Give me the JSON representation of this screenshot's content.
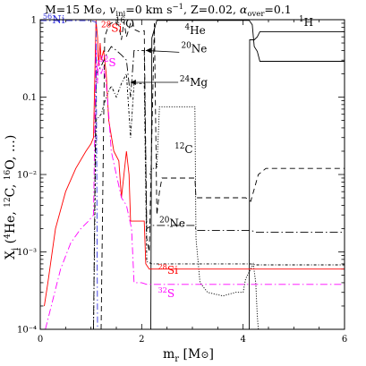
{
  "chart_data": {
    "type": "line",
    "title": "M=15 M⊙, vᵢₙᵢ=0 km s⁻¹, Z=0.02, αover=0.1",
    "title_parts": {
      "mass": "M=15 M",
      "sun": "⊙",
      "comma1": ", ",
      "v": "v",
      "v_sub": "ini",
      "v_eq": "=0 km s",
      "v_exp": "−1",
      "comma2": ", Z=0.02, ",
      "alpha": "α",
      "alpha_sub": "over",
      "alpha_eq": "=0.1"
    },
    "xlabel_parts": {
      "m": "m",
      "sub": "r",
      "unit": " [M",
      "sun": "⊙",
      "close": "]"
    },
    "ylabel_parts": {
      "X": "X",
      "sub": "i",
      "open": " (",
      "n1": "4",
      "e1": "He, ",
      "n2": "12",
      "e2": "C, ",
      "n3": "16",
      "e3": "O, …)"
    },
    "x_axis": {
      "scale": "linear",
      "range": [
        0,
        6
      ],
      "ticks": [
        0,
        2,
        4,
        6
      ],
      "tick_labels": [
        "0",
        "2",
        "4",
        "6"
      ]
    },
    "y_axis": {
      "scale": "log",
      "range": [
        0.0001,
        1
      ],
      "ticks": [
        0.0001,
        0.001,
        0.01,
        0.1,
        1
      ],
      "tick_labels": [
        "10⁻⁴",
        "10⁻³",
        "10⁻²",
        "0.1",
        "1"
      ]
    },
    "series": [
      {
        "label": "1H",
        "color": "#000000",
        "dash": "",
        "points": [
          [
            4.12,
            0.0001
          ],
          [
            4.13,
            0.55
          ],
          [
            4.22,
            0.55
          ],
          [
            4.28,
            0.6
          ],
          [
            4.33,
            0.7
          ],
          [
            6,
            0.7
          ]
        ]
      },
      {
        "label": "4He",
        "color": "#000000",
        "dash": "",
        "points": [
          [
            2.18,
            0.0001
          ],
          [
            2.2,
            0.58
          ],
          [
            2.3,
            0.98
          ],
          [
            4.12,
            0.98
          ],
          [
            4.18,
            0.86
          ],
          [
            4.22,
            0.45
          ],
          [
            4.28,
            0.39
          ],
          [
            4.33,
            0.29
          ],
          [
            6,
            0.29
          ]
        ]
      },
      {
        "label": "12C",
        "color": "#000000",
        "dash": "1.2,1.6",
        "points": [
          [
            2.16,
            0.01
          ],
          [
            2.2,
            0.012
          ],
          [
            2.3,
            0.012
          ],
          [
            2.35,
            0.075
          ],
          [
            3.05,
            0.075
          ],
          [
            3.07,
            0.0015
          ],
          [
            3.15,
            0.0004
          ],
          [
            3.3,
            0.0003
          ],
          [
            3.6,
            0.00027
          ],
          [
            3.85,
            0.0003
          ],
          [
            4.0,
            0.0003
          ],
          [
            4.05,
            0.00045
          ],
          [
            4.15,
            0.0006
          ],
          [
            4.2,
            0.0007
          ],
          [
            4.25,
            0.0004
          ],
          [
            4.28,
            0.00015
          ],
          [
            4.3,
            0.0001
          ]
        ]
      },
      {
        "label": "16O",
        "color": "#000000",
        "dash": "6,4",
        "points": [
          [
            1.2,
            0.0001
          ],
          [
            1.27,
            0.6
          ],
          [
            1.35,
            0.85
          ],
          [
            1.45,
            0.95
          ],
          [
            1.55,
            0.85
          ],
          [
            1.6,
            0.55
          ],
          [
            1.65,
            0.95
          ],
          [
            1.7,
            0.6
          ],
          [
            1.78,
            0.9
          ],
          [
            1.82,
            0.97
          ],
          [
            1.85,
            0.75
          ],
          [
            1.95,
            0.7
          ],
          [
            2.05,
            0.72
          ],
          [
            2.1,
            0.0015
          ],
          [
            2.15,
            0.001
          ],
          [
            2.25,
            0.9
          ],
          [
            2.3,
            0.003
          ],
          [
            2.35,
            0.006
          ],
          [
            2.4,
            0.009
          ],
          [
            2.6,
            0.009
          ],
          [
            3.05,
            0.009
          ],
          [
            3.07,
            0.005
          ],
          [
            4.05,
            0.005
          ],
          [
            4.15,
            0.0045
          ],
          [
            4.3,
            0.01
          ],
          [
            4.45,
            0.012
          ],
          [
            6,
            0.012
          ]
        ]
      },
      {
        "label": "20Ne",
        "color": "#000000",
        "dash": "9,3,1.5,3",
        "points": [
          [
            1.05,
            0.0001
          ],
          [
            1.1,
            0.2
          ],
          [
            1.2,
            0.25
          ],
          [
            1.3,
            0.35
          ],
          [
            1.4,
            0.45
          ],
          [
            1.5,
            0.4
          ],
          [
            1.6,
            0.35
          ],
          [
            1.7,
            0.3
          ],
          [
            1.78,
            0.1
          ],
          [
            1.85,
            0.4
          ],
          [
            1.95,
            0.4
          ],
          [
            2.05,
            0.4
          ],
          [
            2.1,
            0.002
          ],
          [
            2.2,
            0.0022
          ],
          [
            2.3,
            0.0022
          ],
          [
            2.6,
            0.0022
          ],
          [
            3.05,
            0.0022
          ],
          [
            3.07,
            0.0019
          ],
          [
            4.15,
            0.0019
          ],
          [
            4.25,
            0.0018
          ],
          [
            6,
            0.0018
          ]
        ]
      },
      {
        "label": "24Mg",
        "color": "#000000",
        "dash": "3,2,1,2",
        "points": [
          [
            1.05,
            0.0001
          ],
          [
            1.1,
            0.05
          ],
          [
            1.2,
            0.06
          ],
          [
            1.3,
            0.1
          ],
          [
            1.4,
            0.14
          ],
          [
            1.5,
            0.1
          ],
          [
            1.6,
            0.15
          ],
          [
            1.7,
            0.2
          ],
          [
            1.78,
            0.03
          ],
          [
            1.85,
            0.15
          ],
          [
            1.95,
            0.15
          ],
          [
            2.05,
            0.15
          ],
          [
            2.1,
            0.00075
          ],
          [
            2.2,
            0.0007
          ],
          [
            4.15,
            0.0007
          ],
          [
            4.25,
            0.00068
          ],
          [
            6,
            0.00068
          ]
        ]
      },
      {
        "label": "28Si",
        "color": "#ff0000",
        "dash": "",
        "points": [
          [
            0.08,
            0.0002
          ],
          [
            0.15,
            0.0004
          ],
          [
            0.3,
            0.002
          ],
          [
            0.5,
            0.006
          ],
          [
            0.7,
            0.012
          ],
          [
            0.9,
            0.02
          ],
          [
            1.0,
            0.025
          ],
          [
            1.05,
            0.03
          ],
          [
            1.1,
            0.98
          ],
          [
            1.13,
            0.6
          ],
          [
            1.15,
            0.25
          ],
          [
            1.18,
            0.5
          ],
          [
            1.2,
            0.3
          ],
          [
            1.25,
            0.4
          ],
          [
            1.3,
            0.2
          ],
          [
            1.35,
            0.05
          ],
          [
            1.45,
            0.02
          ],
          [
            1.55,
            0.015
          ],
          [
            1.6,
            0.005
          ],
          [
            1.65,
            0.01
          ],
          [
            1.7,
            0.02
          ],
          [
            1.75,
            0.01
          ],
          [
            1.78,
            0.0025
          ],
          [
            2.05,
            0.0025
          ],
          [
            2.08,
            0.0007
          ],
          [
            2.15,
            0.0006
          ],
          [
            6,
            0.0006
          ]
        ]
      },
      {
        "label": "32S",
        "color": "#ff00ff",
        "dash": "8,3,1.5,3",
        "points": [
          [
            0.1,
            0.0001
          ],
          [
            0.2,
            0.00018
          ],
          [
            0.4,
            0.0006
          ],
          [
            0.6,
            0.0013
          ],
          [
            0.8,
            0.002
          ],
          [
            0.95,
            0.0025
          ],
          [
            1.05,
            0.003
          ],
          [
            1.1,
            0.5
          ],
          [
            1.13,
            0.15
          ],
          [
            1.15,
            0.3
          ],
          [
            1.2,
            0.2
          ],
          [
            1.25,
            0.25
          ],
          [
            1.3,
            0.15
          ],
          [
            1.35,
            0.06
          ],
          [
            1.4,
            0.02
          ],
          [
            1.5,
            0.01
          ],
          [
            1.6,
            0.005
          ],
          [
            1.7,
            0.004
          ],
          [
            1.8,
            0.002
          ],
          [
            1.85,
            0.0004
          ],
          [
            2.0,
            0.0004
          ],
          [
            2.1,
            0.00038
          ],
          [
            6,
            0.00038
          ]
        ]
      },
      {
        "label": "56Ni",
        "color": "#3333dd",
        "dash": "7,3,1.5,3",
        "points": [
          [
            0,
            0.97
          ],
          [
            1.0,
            0.97
          ],
          [
            1.05,
            0.95
          ],
          [
            1.1,
            0.93
          ],
          [
            1.13,
            0.0001
          ]
        ]
      }
    ],
    "annotations": [
      {
        "num": "56",
        "el": "Ni",
        "color": "#3333dd",
        "x": 0.05,
        "y": 0.9,
        "size": 12
      },
      {
        "num": "28",
        "el": "Si",
        "color": "#ff0000",
        "x": 1.2,
        "y": 0.7,
        "size": 13
      },
      {
        "num": "16",
        "el": "O",
        "color": "#000000",
        "x": 1.48,
        "y": 0.8,
        "size": 13
      },
      {
        "num": "32",
        "el": "S",
        "color": "#ff00ff",
        "x": 1.15,
        "y": 0.25,
        "size": 13
      },
      {
        "num": "4",
        "el": "He",
        "color": "#000000",
        "x": 2.85,
        "y": 0.65,
        "size": 13
      },
      {
        "num": "1",
        "el": "H",
        "color": "#000000",
        "x": 5.1,
        "y": 0.83,
        "size": 13
      },
      {
        "num": "20",
        "el": "Ne",
        "color": "#000000",
        "x": 2.78,
        "y": 0.38,
        "size": 13
      },
      {
        "num": "24",
        "el": "Mg",
        "color": "#000000",
        "x": 2.75,
        "y": 0.14,
        "size": 13
      },
      {
        "num": "12",
        "el": "C",
        "color": "#000000",
        "x": 2.65,
        "y": 0.019,
        "size": 13
      },
      {
        "num": "20",
        "el": "Ne",
        "color": "#000000",
        "x": 2.35,
        "y": 0.0021,
        "size": 13
      },
      {
        "num": "28",
        "el": "Si",
        "color": "#ff0000",
        "x": 2.32,
        "y": 0.00052,
        "size": 12
      },
      {
        "num": "32",
        "el": "S",
        "color": "#ff00ff",
        "x": 2.32,
        "y": 0.00026,
        "size": 12
      }
    ],
    "pointers": [
      {
        "from": [
          2.74,
          0.38
        ],
        "to": [
          2.08,
          0.4
        ]
      },
      {
        "from": [
          2.72,
          0.155
        ],
        "to": [
          1.78,
          0.155
        ]
      }
    ]
  }
}
